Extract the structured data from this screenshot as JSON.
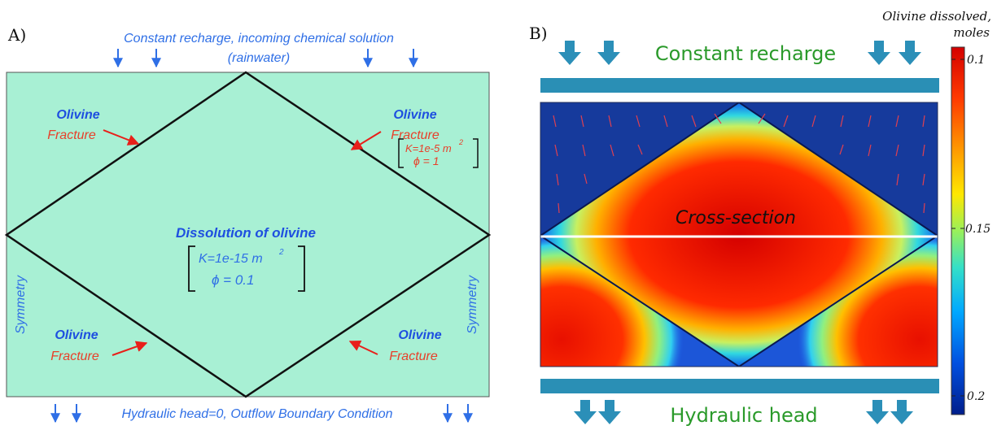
{
  "panel_a": {
    "label": "A)",
    "top_text_line1": "Constant recharge, incoming chemical solution",
    "top_text_line2": "(rainwater)",
    "bottom_text": "Hydraulic head=0, Outflow Boundary Condition",
    "olivine_tl": "Olivine",
    "fracture_tl": "Fracture",
    "olivine_tr": "Olivine",
    "fracture_tr": "Fracture",
    "frac_k": "K=1e-5 m",
    "frac_k_exp": "2",
    "frac_phi": "ϕ = 1",
    "center_title": "Dissolution of olivine",
    "center_k": "K=1e-15  m",
    "center_k_exp": "2",
    "center_phi": "ϕ = 0.1",
    "symmetry_left": "Symmetry",
    "symmetry_right": "Symmetry",
    "olivine_bl": "Olivine",
    "fracture_bl": "Fracture",
    "olivine_br": "Olivine",
    "fracture_br": "Fracture",
    "domain_color": "#a8f0d4"
  },
  "panel_b": {
    "label": "B)",
    "top_text": "Constant recharge",
    "bottom_text": "Hydraulic head",
    "cross_section": "Cross-section",
    "colorbar_title_line1": "Olivine dissolved,",
    "colorbar_title_line2": "moles",
    "colorbar_ticks": [
      "0.1",
      "0.15",
      "0.2"
    ],
    "colormap": [
      "#d40000",
      "#ff3a00",
      "#ff9a00",
      "#ffe800",
      "#9af05a",
      "#34e0c8",
      "#00a8ff",
      "#0050e0",
      "#001e8c"
    ]
  }
}
